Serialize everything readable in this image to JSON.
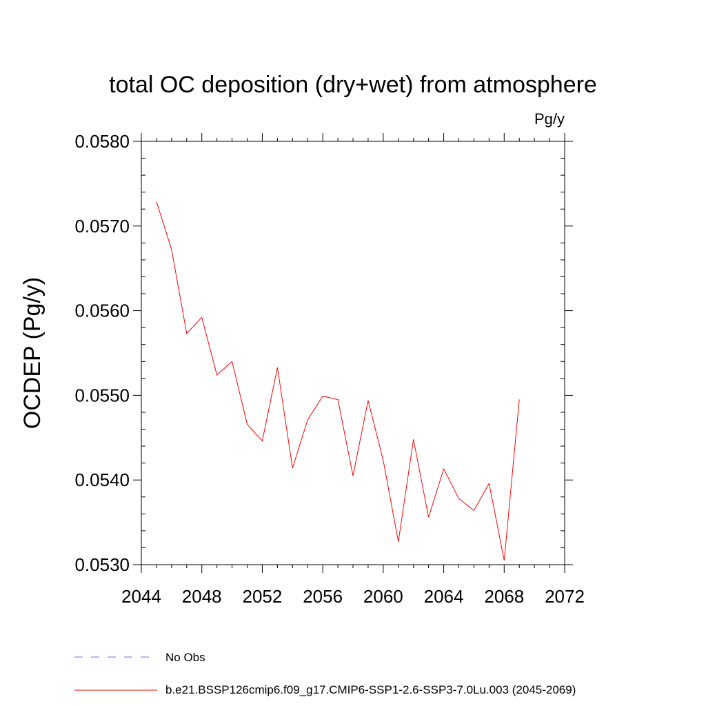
{
  "chart_data": {
    "type": "line",
    "title": "total OC deposition (dry+wet) from atmosphere",
    "units_label": "Pg/y",
    "xlabel": "",
    "ylabel": "OCDEP  (Pg/y)",
    "xlim": [
      2044,
      2072
    ],
    "ylim": [
      0.053,
      0.058
    ],
    "x_ticks": [
      2044,
      2048,
      2052,
      2056,
      2060,
      2064,
      2068,
      2072
    ],
    "x_tick_labels": [
      "2044",
      "2048",
      "2052",
      "2056",
      "2060",
      "2064",
      "2068",
      "2072"
    ],
    "y_ticks": [
      0.053,
      0.054,
      0.055,
      0.056,
      0.057,
      0.058
    ],
    "y_tick_labels": [
      "0.0530",
      "0.0540",
      "0.0550",
      "0.0560",
      "0.0570",
      "0.0580"
    ],
    "grid": false,
    "legend_position": "bottom",
    "series": [
      {
        "name": "b.e21.BSSP126cmip6.f09_g17.CMIP6-SSP1-2.6-SSP3-7.0Lu.003 (2045-2069)",
        "color": "#ff0000",
        "style": "solid",
        "x": [
          2045,
          2046,
          2047,
          2048,
          2049,
          2050,
          2051,
          2052,
          2053,
          2054,
          2055,
          2056,
          2057,
          2058,
          2059,
          2060,
          2061,
          2062,
          2063,
          2064,
          2065,
          2066,
          2067,
          2068,
          2069
        ],
        "values": [
          0.05729,
          0.05672,
          0.05573,
          0.05592,
          0.05524,
          0.0554,
          0.05466,
          0.05446,
          0.05533,
          0.05414,
          0.05471,
          0.05499,
          0.05495,
          0.05405,
          0.05494,
          0.05423,
          0.05327,
          0.05448,
          0.05356,
          0.05413,
          0.05378,
          0.05364,
          0.05396,
          0.05305,
          0.05495
        ]
      }
    ],
    "legend": [
      {
        "label": "No Obs",
        "color": "#7b68ee",
        "style": "dashed"
      },
      {
        "label": "b.e21.BSSP126cmip6.f09_g17.CMIP6-SSP1-2.6-SSP3-7.0Lu.003 (2045-2069)",
        "color": "#ff0000",
        "style": "solid"
      }
    ]
  }
}
